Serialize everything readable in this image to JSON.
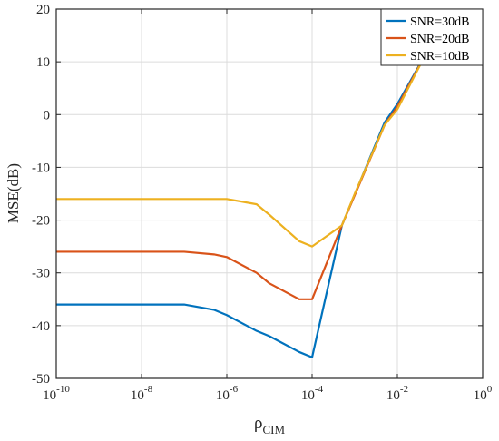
{
  "chart_data": {
    "type": "line",
    "xscale": "log",
    "xlim": [
      1e-10,
      1
    ],
    "ylim": [
      -50,
      20
    ],
    "grid": true,
    "legend_position": "top-right",
    "xlabel": "ρ",
    "xlabel_subscript": "CIM",
    "ylabel": "MSE(dB)",
    "x_ticks": [
      {
        "value": 1e-10,
        "base": "10",
        "exp": "-10"
      },
      {
        "value": 1e-08,
        "base": "10",
        "exp": "-8"
      },
      {
        "value": 1e-06,
        "base": "10",
        "exp": "-6"
      },
      {
        "value": 0.0001,
        "base": "10",
        "exp": "-4"
      },
      {
        "value": 0.01,
        "base": "10",
        "exp": "-2"
      },
      {
        "value": 1,
        "base": "10",
        "exp": "0"
      }
    ],
    "y_ticks": [
      {
        "value": 20,
        "label": "20"
      },
      {
        "value": 10,
        "label": "10"
      },
      {
        "value": 0,
        "label": "0"
      },
      {
        "value": -10,
        "label": "-10"
      },
      {
        "value": -20,
        "label": "-20"
      },
      {
        "value": -30,
        "label": "-30"
      },
      {
        "value": -40,
        "label": "-40"
      },
      {
        "value": -50,
        "label": "-50"
      }
    ],
    "series": [
      {
        "name": "SNR=30dB",
        "color": "#0072BD",
        "x": [
          1e-10,
          1e-07,
          5e-07,
          1e-06,
          5e-06,
          1e-05,
          5e-05,
          0.0001,
          0.0005,
          0.005,
          0.01,
          0.05
        ],
        "y": [
          -36,
          -36,
          -37,
          -38,
          -41,
          -42,
          -45,
          -46,
          -21,
          -1.5,
          2,
          12
        ]
      },
      {
        "name": "SNR=20dB",
        "color": "#D95319",
        "x": [
          1e-10,
          1e-07,
          5e-07,
          1e-06,
          5e-06,
          1e-05,
          5e-05,
          0.0001,
          0.0005,
          0.005,
          0.01,
          0.05
        ],
        "y": [
          -26,
          -26,
          -26.5,
          -27,
          -30,
          -32,
          -35,
          -35,
          -21,
          -2,
          1.5,
          12
        ]
      },
      {
        "name": "SNR=10dB",
        "color": "#EDB120",
        "x": [
          1e-10,
          1e-07,
          5e-07,
          1e-06,
          5e-06,
          1e-05,
          5e-05,
          0.0001,
          0.0005,
          0.001,
          0.005,
          0.01,
          0.05
        ],
        "y": [
          -16,
          -16,
          -16,
          -16,
          -17,
          -19,
          -24,
          -25,
          -21,
          -15,
          -2,
          1,
          12
        ]
      }
    ]
  }
}
